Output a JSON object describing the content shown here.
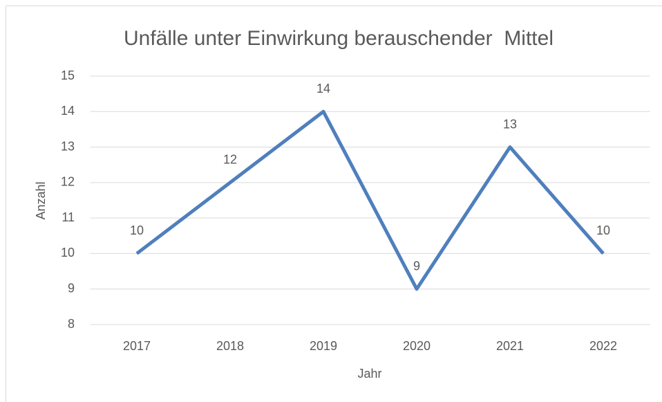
{
  "chart_data": {
    "type": "line",
    "title": "Unfälle unter Einwirkung berauschender  Mittel",
    "x_label": "Jahr",
    "y_label": "Anzahl",
    "categories": [
      "2017",
      "2018",
      "2019",
      "2020",
      "2021",
      "2022"
    ],
    "series": [
      {
        "name": "Anzahl",
        "color": "#4f7fbd",
        "values": [
          10,
          12,
          14,
          9,
          13,
          10
        ]
      }
    ],
    "ylim": [
      8,
      15
    ],
    "yticks": [
      8,
      9,
      10,
      11,
      12,
      13,
      14,
      15
    ],
    "grid": true,
    "data_labels": true
  }
}
